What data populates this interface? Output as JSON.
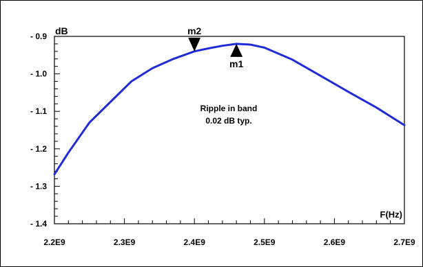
{
  "chart_data": {
    "type": "line",
    "ylabel": "dB",
    "xlabel": "F(Hz)",
    "xlim": [
      2200000000,
      2700000000
    ],
    "ylim": [
      -1.4,
      -0.9
    ],
    "x_ticks": [
      {
        "value": 2200000000,
        "label": "2.2E9"
      },
      {
        "value": 2300000000,
        "label": "2.3E9"
      },
      {
        "value": 2400000000,
        "label": "2.4E9"
      },
      {
        "value": 2500000000,
        "label": "2.5E9"
      },
      {
        "value": 2600000000,
        "label": "2.6E9"
      },
      {
        "value": 2700000000,
        "label": "2.7E9"
      }
    ],
    "y_ticks": [
      {
        "value": -0.9,
        "label": "- 0.9"
      },
      {
        "value": -1.0,
        "label": "- 1.0"
      },
      {
        "value": -1.1,
        "label": "- 1.1"
      },
      {
        "value": -1.2,
        "label": "- 1.2"
      },
      {
        "value": -1.3,
        "label": "- 1.3"
      },
      {
        "value": -1.4,
        "label": "- 1.4"
      }
    ],
    "series": [
      {
        "color": "#1f2bd6",
        "x": [
          2200000000,
          2220000000,
          2250000000,
          2280000000,
          2310000000,
          2340000000,
          2370000000,
          2400000000,
          2420000000,
          2440000000,
          2460000000,
          2480000000,
          2500000000,
          2540000000,
          2580000000,
          2620000000,
          2660000000,
          2700000000
        ],
        "y": [
          -1.268,
          -1.21,
          -1.13,
          -1.075,
          -1.02,
          -0.985,
          -0.96,
          -0.94,
          -0.932,
          -0.925,
          -0.92,
          -0.922,
          -0.93,
          -0.962,
          -1.005,
          -1.048,
          -1.09,
          -1.137
        ]
      }
    ],
    "markers": [
      {
        "label": "m2",
        "x": 2400000000,
        "y": -0.94,
        "direction": "down"
      },
      {
        "label": "m1",
        "x": 2460000000,
        "y": -0.92,
        "direction": "up"
      }
    ],
    "annotation": {
      "lines": [
        "Ripple in band",
        "0.02 dB typ."
      ]
    },
    "grid": false
  }
}
